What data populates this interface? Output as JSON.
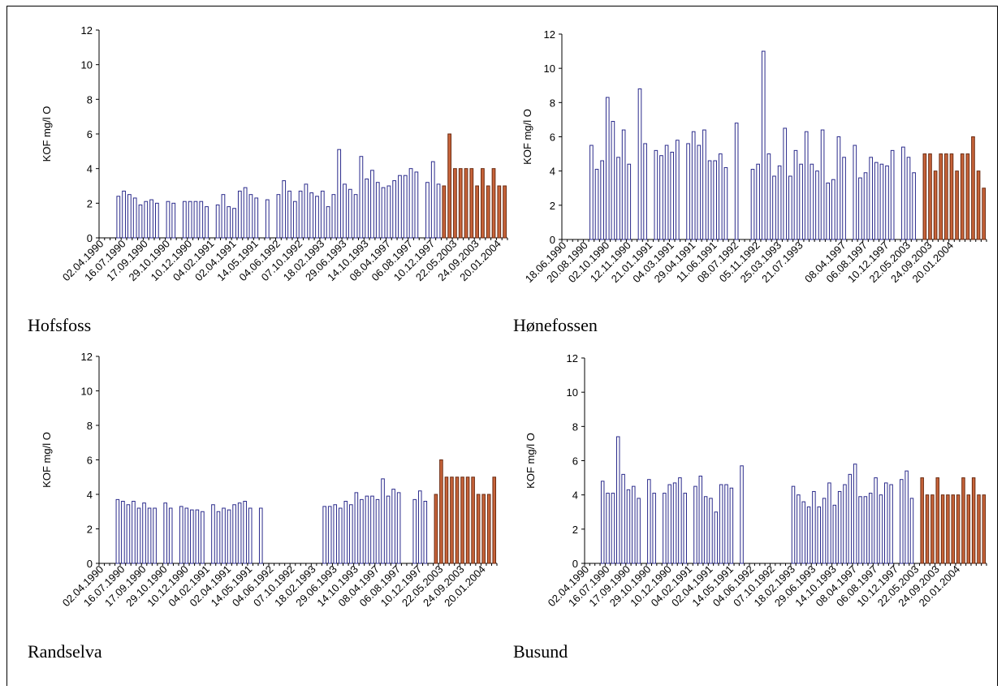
{
  "colors": {
    "blue_fill": "#ffffff",
    "blue_stroke": "#2b2b8c",
    "orange_fill": "#c8643a",
    "orange_stroke": "#6b2a10",
    "axis": "#000000"
  },
  "chart_data": [
    {
      "type": "bar",
      "station": "Hofsfoss",
      "ylabel": "KOF mg/l O",
      "ylim": [
        0,
        12
      ],
      "yticks": [
        0,
        2,
        4,
        6,
        8,
        10,
        12
      ],
      "x_tick_labels": [
        "02.04.1990",
        "16.07.1990",
        "17.09.1990",
        "29.10.1990",
        "10.12.1990",
        "04.02.1991",
        "02.04.1991",
        "14.05.1991",
        "04.06.1992",
        "07.10.1992",
        "18.02.1993",
        "29.06.1993",
        "14.10.1993",
        "08.04.1997",
        "06.08.1997",
        "10.12.1997",
        "22.05.2003",
        "24.09.2003",
        "20.01.2004"
      ],
      "tick_every": 4,
      "values": [
        null,
        null,
        null,
        2.4,
        2.7,
        2.5,
        2.3,
        1.9,
        2.1,
        2.2,
        2.0,
        null,
        2.1,
        2.0,
        null,
        2.1,
        2.1,
        2.1,
        2.1,
        1.8,
        null,
        1.9,
        2.5,
        1.8,
        1.7,
        2.7,
        2.9,
        2.5,
        2.3,
        null,
        2.2,
        null,
        2.5,
        3.3,
        2.7,
        2.1,
        2.7,
        3.1,
        2.6,
        2.4,
        2.7,
        1.8,
        2.5,
        5.1,
        3.1,
        2.8,
        2.5,
        4.7,
        3.4,
        3.9,
        3.2,
        2.9,
        3.0,
        3.3,
        3.6,
        3.6,
        4.0,
        3.8,
        null,
        3.2,
        4.4,
        3.1,
        3.0,
        6.0,
        4.0,
        4.0,
        4.0,
        4.0,
        3.0,
        4.0,
        3.0,
        4.0,
        3.0,
        3.0
      ],
      "series": [
        {
          "period": "1990–1997",
          "color": "blue"
        },
        {
          "period": "2003–2004",
          "color": "orange",
          "start_index": 62
        }
      ]
    },
    {
      "type": "bar",
      "station": "Hønefossen",
      "ylabel": "KOF mg/l O",
      "ylim": [
        0,
        12
      ],
      "yticks": [
        0,
        2,
        4,
        6,
        8,
        10,
        12
      ],
      "x_tick_labels": [
        "18.06.1990",
        "20.08.1990",
        "02.10.1990",
        "12.11.1990",
        "21.01.1991",
        "04.03.1991",
        "29.04.1991",
        "11.06.1991",
        "08.07.1992",
        "05.11.1992",
        "25.03.1993",
        "21.07.1993",
        "",
        "08.04.1997",
        "06.08.1997",
        "10.12.1997",
        "22.05.2003",
        "24.09.2003",
        "20.01.2004"
      ],
      "tick_every": 4,
      "values": [
        null,
        null,
        null,
        null,
        null,
        5.5,
        4.1,
        4.6,
        8.3,
        6.9,
        4.8,
        6.4,
        4.4,
        null,
        8.8,
        5.6,
        null,
        5.2,
        4.9,
        5.5,
        5.1,
        5.8,
        null,
        5.6,
        6.3,
        5.5,
        6.4,
        4.6,
        4.6,
        5.0,
        4.2,
        null,
        6.8,
        null,
        null,
        4.1,
        4.4,
        11.0,
        5.0,
        3.7,
        4.3,
        6.5,
        3.7,
        5.2,
        4.4,
        6.3,
        4.4,
        4.0,
        6.4,
        3.3,
        3.5,
        6.0,
        4.8,
        null,
        5.5,
        3.6,
        3.9,
        4.8,
        4.5,
        4.4,
        4.3,
        5.2,
        null,
        5.4,
        4.8,
        3.9,
        null,
        5.0,
        5.0,
        4.0,
        5.0,
        5.0,
        5.0,
        4.0,
        5.0,
        5.0,
        6.0,
        4.0,
        3.0
      ],
      "series": [
        {
          "period": "1990–1997",
          "color": "blue"
        },
        {
          "period": "2003–2004",
          "color": "orange",
          "start_index": 67
        }
      ]
    },
    {
      "type": "bar",
      "station": "Randselva",
      "ylabel": "KOF mg/l O",
      "ylim": [
        0,
        12
      ],
      "yticks": [
        0,
        2,
        4,
        6,
        8,
        10,
        12
      ],
      "x_tick_labels": [
        "02.04.1990",
        "16.07.1990",
        "17.09.1990",
        "29.10.1990",
        "10.12.1990",
        "04.02.1991",
        "02.04.1991",
        "14.05.1991",
        "04.06.1992",
        "07.10.1992",
        "18.02.1993",
        "29.06.1993",
        "14.10.1993",
        "08.04.1997",
        "06.08.1997",
        "10.12.1997",
        "22.05.2003",
        "24.09.2003",
        "20.01.2004"
      ],
      "tick_every": 4,
      "values": [
        null,
        null,
        null,
        3.7,
        3.6,
        3.4,
        3.6,
        3.2,
        3.5,
        3.2,
        3.2,
        null,
        3.5,
        3.2,
        null,
        3.3,
        3.2,
        3.1,
        3.1,
        3.0,
        null,
        3.4,
        3.0,
        3.2,
        3.1,
        3.4,
        3.5,
        3.6,
        3.2,
        null,
        3.2,
        null,
        null,
        null,
        null,
        null,
        null,
        null,
        null,
        null,
        null,
        null,
        3.3,
        3.3,
        3.4,
        3.2,
        3.6,
        3.4,
        4.1,
        3.7,
        3.9,
        3.9,
        3.7,
        4.9,
        3.9,
        4.3,
        4.1,
        null,
        null,
        3.7,
        4.2,
        3.6,
        null,
        4.0,
        6.0,
        5.0,
        5.0,
        5.0,
        5.0,
        5.0,
        5.0,
        4.0,
        4.0,
        4.0,
        5.0
      ],
      "series": [
        {
          "period": "1990–1997",
          "color": "blue"
        },
        {
          "period": "2003–2004",
          "color": "orange",
          "start_index": 63
        }
      ]
    },
    {
      "type": "bar",
      "station": "Busund",
      "ylabel": "KOF mg/l O",
      "ylim": [
        0,
        12
      ],
      "yticks": [
        0,
        2,
        4,
        6,
        8,
        10,
        12
      ],
      "x_tick_labels": [
        "02.04.1990",
        "16.07.1990",
        "17.09.1990",
        "29.10.1990",
        "10.12.1990",
        "04.02.1991",
        "02.04.1991",
        "14.05.1991",
        "04.06.1992",
        "07.10.1992",
        "18.02.1993",
        "29.06.1993",
        "14.10.1993",
        "08.04.1997",
        "06.08.1997",
        "10.12.1997",
        "22.05.2003",
        "24.09.2003",
        "20.01.2004"
      ],
      "tick_every": 4,
      "values": [
        null,
        null,
        null,
        4.8,
        4.1,
        4.1,
        7.4,
        5.2,
        4.3,
        4.5,
        3.8,
        null,
        4.9,
        4.1,
        null,
        4.1,
        4.6,
        4.7,
        5.0,
        4.1,
        null,
        4.5,
        5.1,
        3.9,
        3.8,
        3.0,
        4.6,
        4.6,
        4.4,
        null,
        5.7,
        null,
        null,
        null,
        null,
        null,
        null,
        null,
        null,
        null,
        4.5,
        4.0,
        3.6,
        3.3,
        4.2,
        3.3,
        3.8,
        4.7,
        3.4,
        4.2,
        4.6,
        5.2,
        5.8,
        3.9,
        3.9,
        4.1,
        5.0,
        4.0,
        4.7,
        4.6,
        null,
        4.9,
        5.4,
        3.8,
        null,
        5.0,
        4.0,
        4.0,
        5.0,
        4.0,
        4.0,
        4.0,
        4.0,
        5.0,
        4.0,
        5.0,
        4.0,
        4.0
      ],
      "series": [
        {
          "period": "1990–1997",
          "color": "blue"
        },
        {
          "period": "2003–2004",
          "color": "orange",
          "start_index": 65
        }
      ]
    }
  ]
}
